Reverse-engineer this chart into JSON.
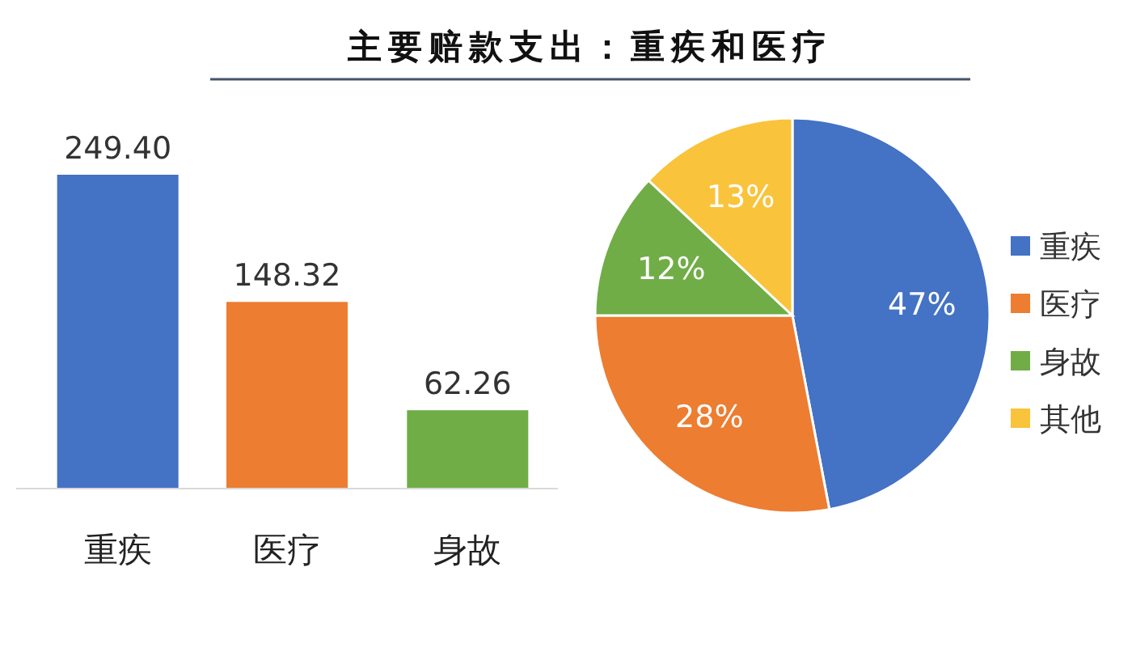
{
  "chart_data": [
    {
      "type": "bar",
      "title": "主要赔款支出：重疾和医疗",
      "categories": [
        "重疾",
        "医疗",
        "身故"
      ],
      "values": [
        249.4,
        148.32,
        62.26
      ],
      "value_labels": [
        "249.40",
        "148.32",
        "62.26"
      ],
      "colors": [
        "#4472c4",
        "#ed7d31",
        "#70ad47"
      ]
    },
    {
      "type": "pie",
      "categories": [
        "重疾",
        "医疗",
        "身故",
        "其他"
      ],
      "values": [
        47,
        28,
        12,
        13
      ],
      "value_labels": [
        "47%",
        "28%",
        "12%",
        "13%"
      ],
      "colors": [
        "#4472c4",
        "#ed7d31",
        "#70ad47",
        "#f9c33c"
      ],
      "legend": "right"
    }
  ]
}
